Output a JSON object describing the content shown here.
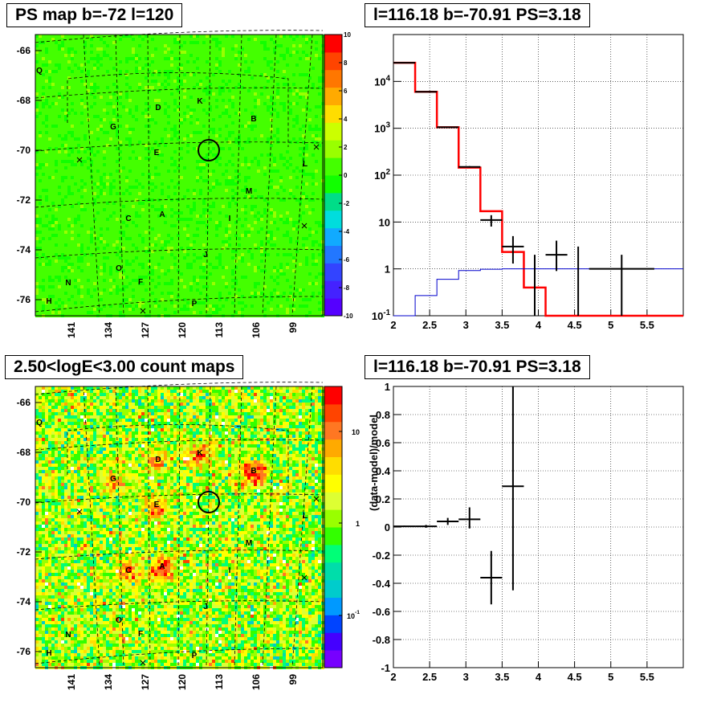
{
  "panels": {
    "map_title": "PS map b=-72 l=120",
    "count_title": "2.50<logE<3.00 count maps",
    "spectrum_title": "l=116.18 b=-70.91 PS=3.18",
    "residual_title": "l=116.18 b=-70.91 PS=3.18"
  },
  "chart_data": [
    {
      "type": "heatmap",
      "name": "ps-map",
      "title": "PS map b=-72 l=120",
      "y_ticks": [
        "-66",
        "-68",
        "-70",
        "-72",
        "-74",
        "-76"
      ],
      "x_ticks": [
        "141",
        "134",
        "127",
        "120",
        "113",
        "106",
        "99"
      ],
      "colorbar_ticks": [
        "10",
        "8",
        "6",
        "4",
        "2",
        "0",
        "-2",
        "-4",
        "-6",
        "-8",
        "-10"
      ],
      "colorbar_range": [
        -10,
        10
      ],
      "dominant_value": 0.5,
      "source_labels": [
        "Q",
        "D",
        "K",
        "G",
        "B",
        "E",
        "L",
        "M",
        "C",
        "A",
        "I",
        "J",
        "O",
        "N",
        "F",
        "H",
        "P"
      ],
      "marked_source": {
        "l": 116.18,
        "b": -70.91
      }
    },
    {
      "type": "heatmap",
      "name": "count-map",
      "title": "2.50<logE<3.00 count maps",
      "scale": "log",
      "y_ticks": [
        "-66",
        "-68",
        "-70",
        "-72",
        "-74",
        "-76"
      ],
      "x_ticks": [
        "141",
        "134",
        "127",
        "120",
        "113",
        "106",
        "99"
      ],
      "colorbar_ticks": [
        "10",
        "1",
        "10^-1"
      ],
      "source_labels": [
        "Q",
        "D",
        "K",
        "G",
        "B",
        "E",
        "L",
        "M",
        "C",
        "A",
        "I",
        "J",
        "O",
        "N",
        "F",
        "H",
        "P"
      ],
      "hotspots": [
        "D",
        "B",
        "G",
        "E",
        "A",
        "C"
      ]
    },
    {
      "type": "line",
      "name": "spectrum",
      "title": "l=116.18 b=-70.91 PS=3.18",
      "yscale": "log",
      "xlim": [
        2,
        6
      ],
      "ylim": [
        0.1,
        100000
      ],
      "x_ticks": [
        "2",
        "2.5",
        "3",
        "3.5",
        "4",
        "4.5",
        "5",
        "5.5"
      ],
      "y_ticks": [
        "10^-1",
        "1",
        "10",
        "10^2",
        "10^3",
        "10^4"
      ],
      "grid": true,
      "series": [
        {
          "color": "#ff0000",
          "edges": [
            2.0,
            2.3,
            2.6,
            2.9,
            3.2,
            3.5,
            3.8,
            4.1,
            4.4,
            6.0
          ],
          "values": [
            25000,
            6000,
            1050,
            145,
            17,
            2.3,
            0.4,
            0.1,
            0.1
          ]
        },
        {
          "color": "#0000cc",
          "edges": [
            2.0,
            2.3,
            2.6,
            2.9,
            3.2,
            3.5,
            3.8,
            4.1,
            4.4,
            6.0
          ],
          "values": [
            0.1,
            0.27,
            0.6,
            0.92,
            0.98,
            1.0,
            1.0,
            1.0,
            1.0
          ]
        },
        {
          "color": "#000000",
          "points": [
            {
              "x": 2.15,
              "y": 25000,
              "xerr": 0.15,
              "ylo": 25000,
              "yhi": 25000
            },
            {
              "x": 2.45,
              "y": 6000,
              "xerr": 0.15,
              "ylo": 6000,
              "yhi": 6000
            },
            {
              "x": 2.75,
              "y": 1050,
              "xerr": 0.15,
              "ylo": 1040,
              "yhi": 1060
            },
            {
              "x": 3.05,
              "y": 150,
              "xerr": 0.15,
              "ylo": 145,
              "yhi": 156
            },
            {
              "x": 3.35,
              "y": 11,
              "xerr": 0.15,
              "ylo": 8,
              "yhi": 14
            },
            {
              "x": 3.65,
              "y": 3,
              "xerr": 0.15,
              "ylo": 1.3,
              "yhi": 5
            },
            {
              "x": 3.95,
              "y": 0.1,
              "xerr": 0.0,
              "ylo": 0.1,
              "yhi": 2
            },
            {
              "x": 4.25,
              "y": 2,
              "xerr": 0.15,
              "ylo": 0.9,
              "yhi": 4
            },
            {
              "x": 4.55,
              "y": 0.1,
              "xerr": 0.0,
              "ylo": 0.1,
              "yhi": 3
            },
            {
              "x": 5.15,
              "y": 1,
              "xerr": 0.45,
              "ylo": 0.1,
              "yhi": 2
            }
          ]
        }
      ]
    },
    {
      "type": "scatter",
      "name": "residuals",
      "title": "l=116.18 b=-70.91 PS=3.18",
      "ylabel": "(data-model)/model",
      "xlim": [
        2,
        6
      ],
      "ylim": [
        -1,
        1
      ],
      "x_ticks": [
        "2",
        "2.5",
        "3",
        "3.5",
        "4",
        "4.5",
        "5",
        "5.5"
      ],
      "y_ticks": [
        "1",
        "0.8",
        "0.6",
        "0.4",
        "0.2",
        "0",
        "-0.2",
        "-0.4",
        "-0.6",
        "-0.8",
        "-1"
      ],
      "grid": true,
      "points": [
        {
          "x": 2.15,
          "y": 0.005,
          "xerr": 0.15,
          "ylo": 0.0,
          "yhi": 0.01
        },
        {
          "x": 2.45,
          "y": 0.005,
          "xerr": 0.15,
          "ylo": -0.005,
          "yhi": 0.015
        },
        {
          "x": 2.75,
          "y": 0.04,
          "xerr": 0.15,
          "ylo": 0.015,
          "yhi": 0.065
        },
        {
          "x": 3.05,
          "y": 0.055,
          "xerr": 0.15,
          "ylo": -0.01,
          "yhi": 0.14
        },
        {
          "x": 3.35,
          "y": -0.36,
          "xerr": 0.15,
          "ylo": -0.55,
          "yhi": -0.17
        },
        {
          "x": 3.65,
          "y": 0.29,
          "xerr": 0.15,
          "ylo": -0.45,
          "yhi": 1.0
        }
      ]
    }
  ]
}
